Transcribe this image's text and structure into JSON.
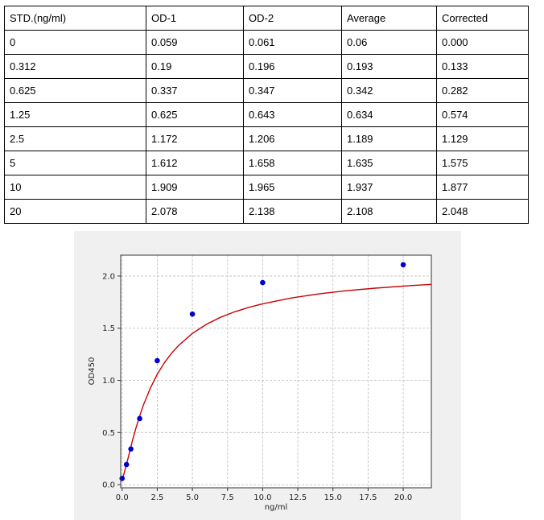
{
  "table": {
    "headers": [
      "STD.(ng/ml)",
      "OD-1",
      "OD-2",
      "Average",
      "Corrected"
    ],
    "rows": [
      [
        "0",
        "0.059",
        "0.061",
        "0.06",
        "0.000"
      ],
      [
        "0.312",
        "0.19",
        "0.196",
        "0.193",
        "0.133"
      ],
      [
        "0.625",
        "0.337",
        "0.347",
        "0.342",
        "0.282"
      ],
      [
        "1.25",
        "0.625",
        "0.643",
        "0.634",
        "0.574"
      ],
      [
        "2.5",
        "1.172",
        "1.206",
        "1.189",
        "1.129"
      ],
      [
        "5",
        "1.612",
        "1.658",
        "1.635",
        "1.575"
      ],
      [
        "10",
        "1.909",
        "1.965",
        "1.937",
        "1.877"
      ],
      [
        "20",
        "2.078",
        "2.138",
        "2.108",
        "2.048"
      ]
    ]
  },
  "chart_data": {
    "type": "scatter",
    "title": "",
    "xlabel": "ng/ml",
    "ylabel": "OD450",
    "xlim": [
      -0.1,
      22
    ],
    "ylim": [
      -0.03,
      2.2
    ],
    "xticks": [
      "0.0",
      "2.5",
      "5.0",
      "7.5",
      "10.0",
      "12.5",
      "15.0",
      "17.5",
      "20.0"
    ],
    "yticks": [
      "0.0",
      "0.5",
      "1.0",
      "1.5",
      "2.0"
    ],
    "grid": true,
    "series": [
      {
        "type": "scatter",
        "color": "#0000cc",
        "x": [
          0,
          0.312,
          0.625,
          1.25,
          2.5,
          5,
          10,
          20
        ],
        "y": [
          0.06,
          0.193,
          0.342,
          0.634,
          1.189,
          1.635,
          1.937,
          2.108
        ]
      },
      {
        "type": "line",
        "color": "#cc0000",
        "x": [
          0,
          0.25,
          0.5,
          0.75,
          1,
          1.25,
          1.5,
          2,
          2.5,
          3,
          3.5,
          4,
          5,
          6,
          7,
          8,
          9,
          10,
          12,
          14,
          16,
          18,
          20,
          22
        ],
        "y": [
          0.04,
          0.162,
          0.296,
          0.429,
          0.55,
          0.659,
          0.757,
          0.924,
          1.058,
          1.167,
          1.257,
          1.332,
          1.45,
          1.537,
          1.604,
          1.657,
          1.699,
          1.734,
          1.789,
          1.829,
          1.86,
          1.884,
          1.904,
          1.92
        ]
      }
    ]
  }
}
